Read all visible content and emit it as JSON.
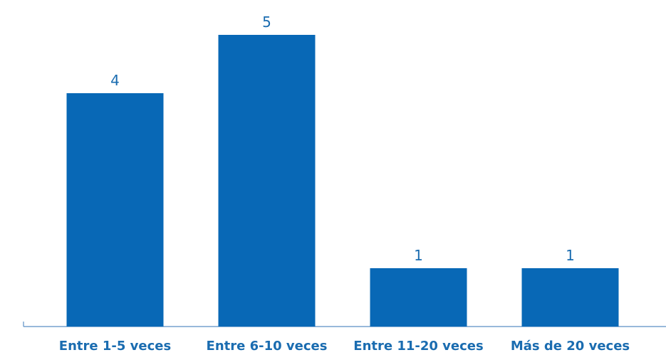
{
  "chart_data": {
    "type": "bar",
    "categories": [
      "Entre 1-5 veces",
      "Entre 6-10 veces",
      "Entre 11-20 veces",
      "Más de 20 veces"
    ],
    "values": [
      4,
      5,
      1,
      1
    ],
    "data_labels": [
      "4",
      "5",
      "1",
      "1"
    ],
    "title": "",
    "xlabel": "",
    "ylabel": "",
    "ylim": [
      0,
      5
    ],
    "grid": false,
    "legend": "none"
  },
  "colors": {
    "bar": "#0868B6",
    "value_label": "#1A6CB0",
    "category_label": "#1A6CB0",
    "axis": "#5B8FC4"
  }
}
